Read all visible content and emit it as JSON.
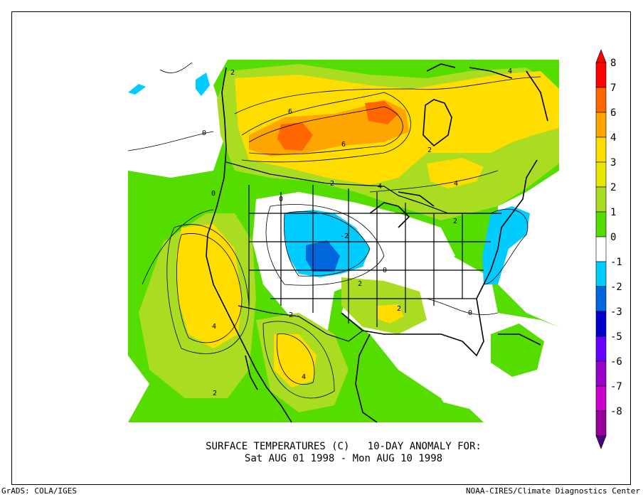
{
  "title": {
    "line1": "SURFACE TEMPERATURES (C)   10-DAY ANOMALY FOR:",
    "line2": "Sat AUG 01 1998 - Mon AUG 10 1998"
  },
  "footer": {
    "left": "GrADS: COLA/IGES",
    "right": "NOAA-CIRES/Climate Diagnostics Center"
  },
  "legend": {
    "items": [
      {
        "label": "8",
        "color": "#ff0000"
      },
      {
        "label": "7",
        "color": "#ff6600"
      },
      {
        "label": "6",
        "color": "#ffa500"
      },
      {
        "label": "4",
        "color": "#ffdd00"
      },
      {
        "label": "3",
        "color": "#e6e600"
      },
      {
        "label": "2",
        "color": "#aadd22"
      },
      {
        "label": "1",
        "color": "#55dd00"
      },
      {
        "label": "0",
        "color": "#ffffff"
      },
      {
        "label": "-1",
        "color": "#00ccff"
      },
      {
        "label": "-2",
        "color": "#0066dd"
      },
      {
        "label": "-3",
        "color": "#0000cc"
      },
      {
        "label": "-5",
        "color": "#6600ff"
      },
      {
        "label": "-6",
        "color": "#9900cc"
      },
      {
        "label": "-7",
        "color": "#cc00cc"
      },
      {
        "label": "-8",
        "color": "#990099"
      }
    ],
    "top_color": "#ff0000",
    "bottom_color": "#4b0082"
  },
  "contour_labels": [
    {
      "text": "2"
    },
    {
      "text": "6"
    },
    {
      "text": "6"
    },
    {
      "text": "2"
    },
    {
      "text": "4"
    },
    {
      "text": "4"
    },
    {
      "text": "0"
    },
    {
      "text": "0"
    },
    {
      "text": "2"
    },
    {
      "text": "4"
    },
    {
      "text": "0"
    },
    {
      "text": "-2"
    },
    {
      "text": "0"
    },
    {
      "text": "2"
    },
    {
      "text": "2"
    },
    {
      "text": "2"
    },
    {
      "text": "4"
    },
    {
      "text": "4"
    },
    {
      "text": "2"
    },
    {
      "text": "0"
    },
    {
      "text": "2"
    }
  ],
  "colors": {
    "white": "#ffffff",
    "green": "#55dd00",
    "lightgreen": "#aadd22",
    "yellow": "#ffdd00",
    "orange": "#ffa500",
    "darkorange": "#ff6600",
    "cyan": "#00ccff",
    "blue": "#0066dd"
  }
}
